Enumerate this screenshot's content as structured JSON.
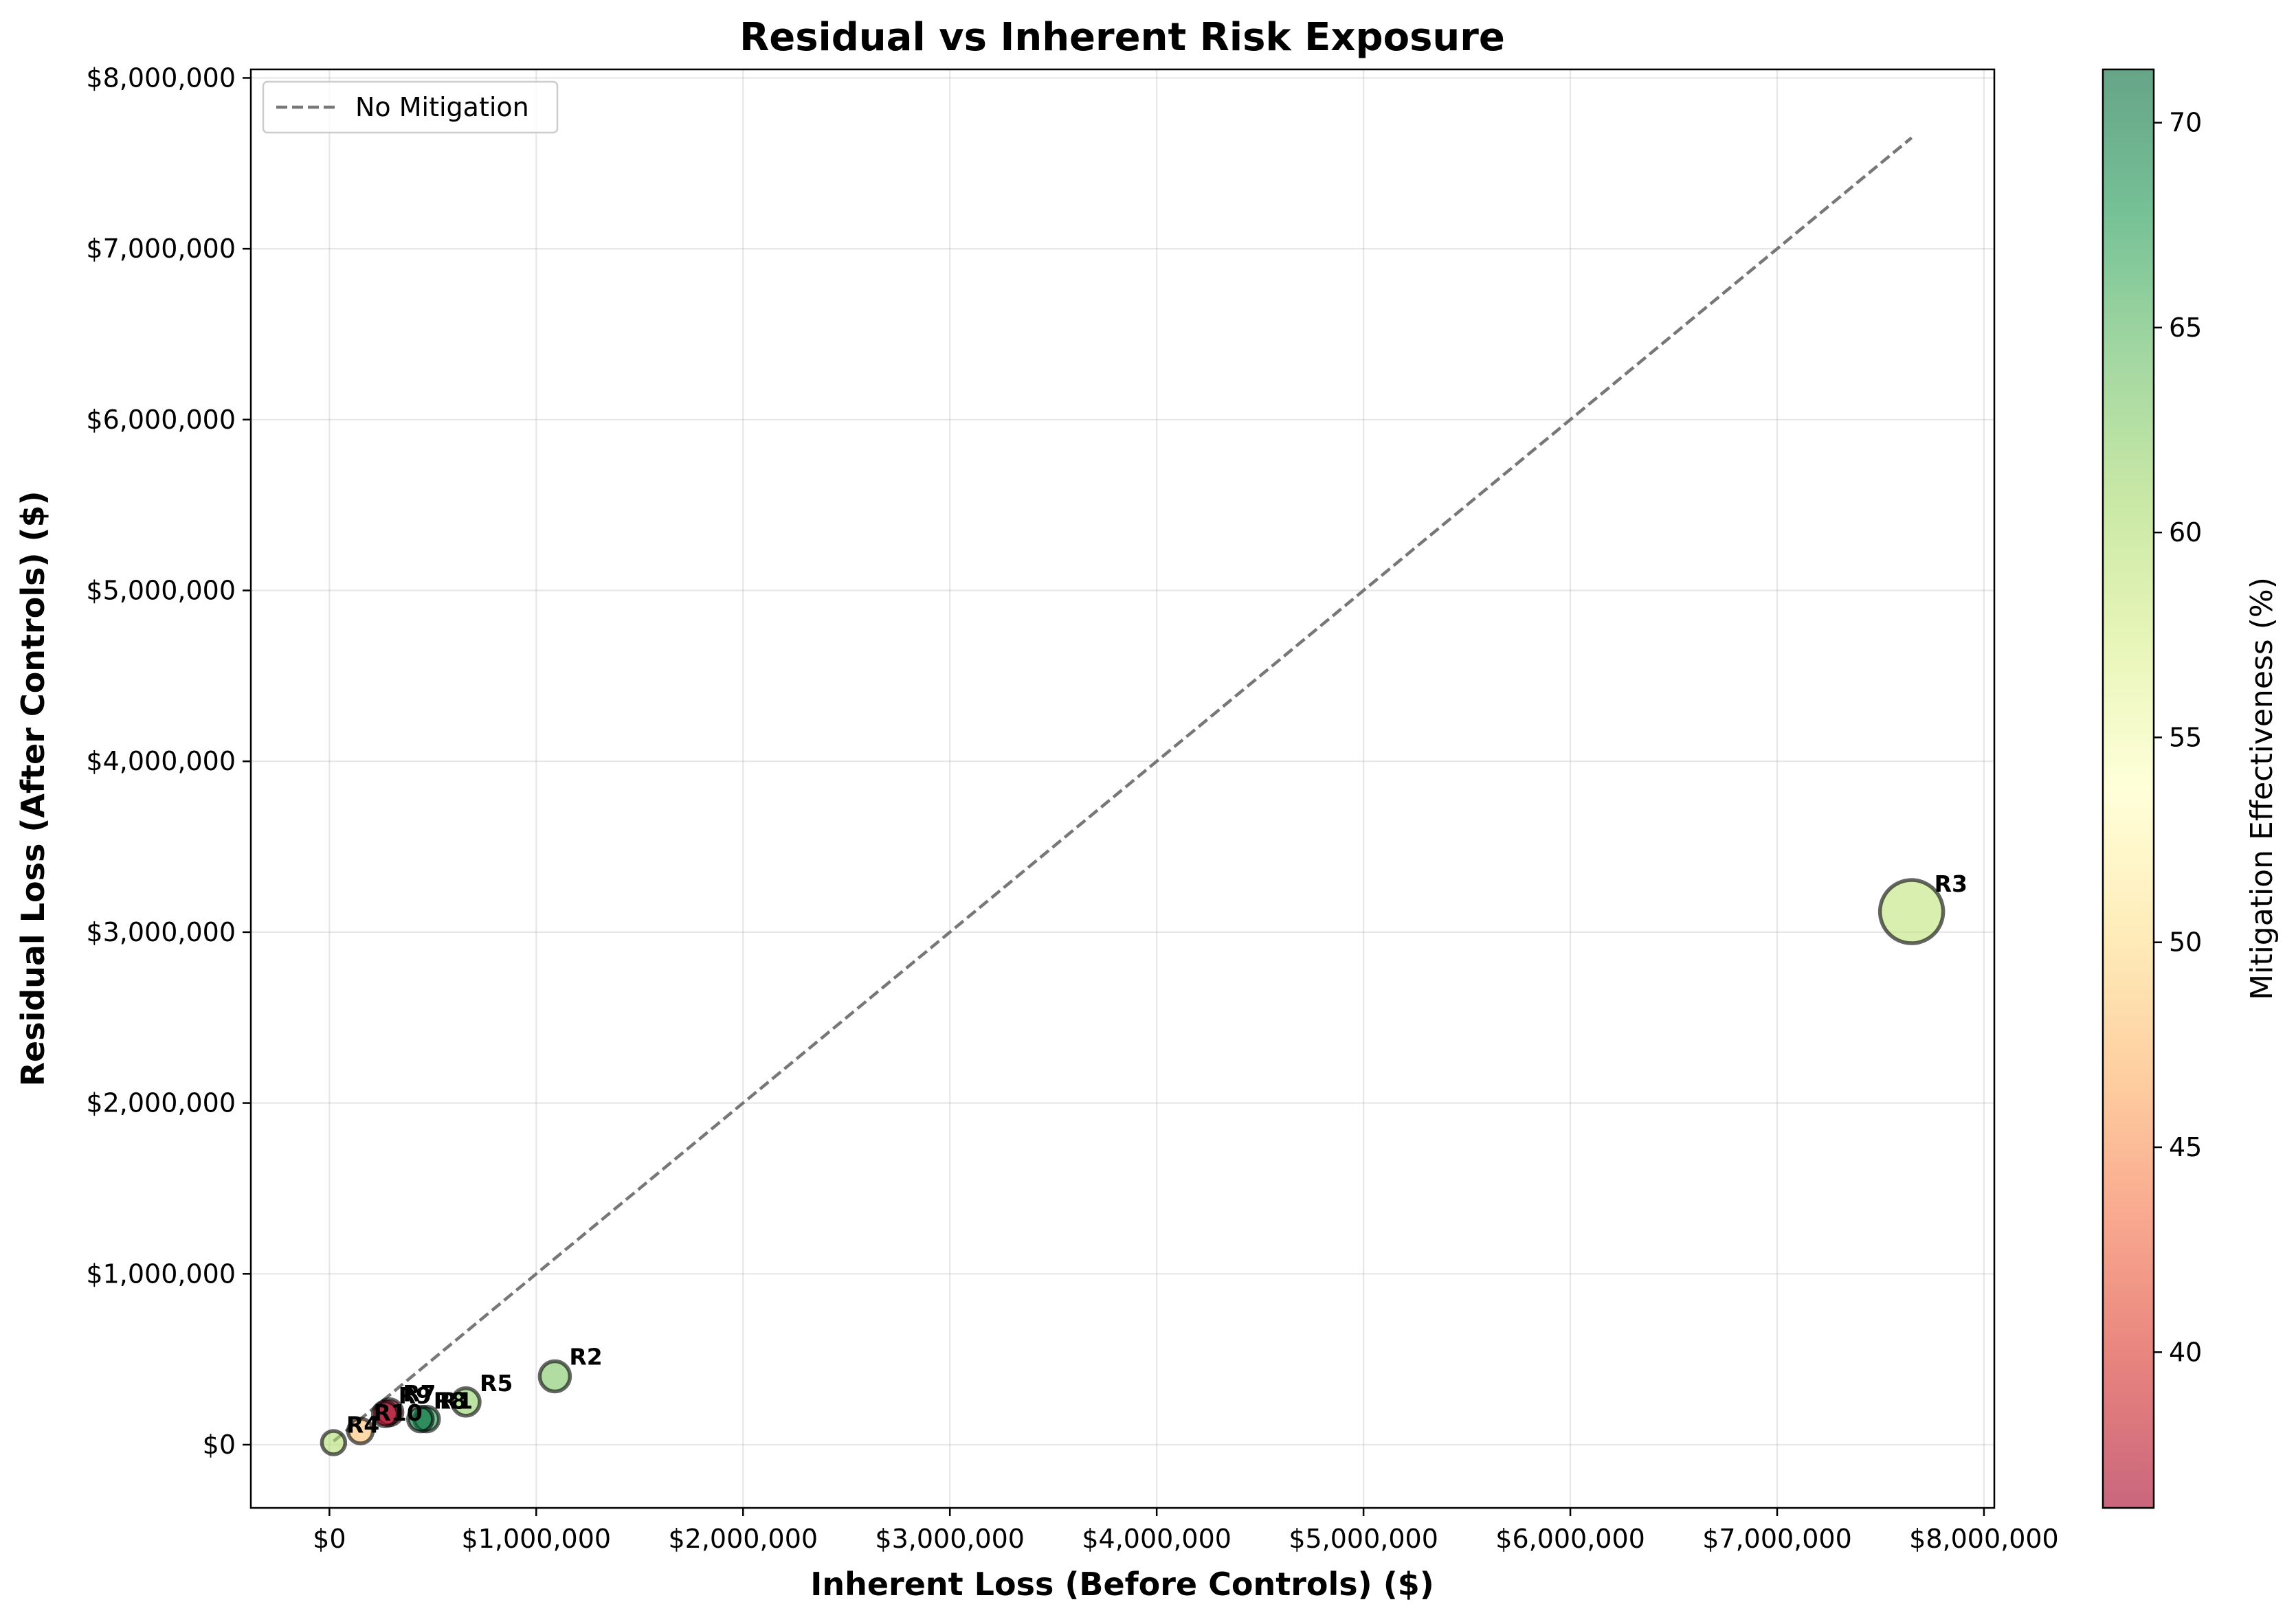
{
  "chart_data": {
    "type": "scatter",
    "title": "Residual vs Inherent Risk Exposure",
    "xlabel": "Inherent Loss (Before Controls) ($)",
    "ylabel": "Residual Loss (After Controls) ($)",
    "xlim": [
      -380000,
      8050000
    ],
    "ylim": [
      -370000,
      8050000
    ],
    "x_ticks": [
      0,
      1000000,
      2000000,
      3000000,
      4000000,
      5000000,
      6000000,
      7000000,
      8000000
    ],
    "x_tick_labels": [
      "$0",
      "$1,000,000",
      "$2,000,000",
      "$3,000,000",
      "$4,000,000",
      "$5,000,000",
      "$6,000,000",
      "$7,000,000",
      "$8,000,000"
    ],
    "y_ticks": [
      0,
      1000000,
      2000000,
      3000000,
      4000000,
      5000000,
      6000000,
      7000000,
      8000000
    ],
    "y_tick_labels": [
      "$0",
      "$1,000,000",
      "$2,000,000",
      "$3,000,000",
      "$4,000,000",
      "$5,000,000",
      "$6,000,000",
      "$7,000,000",
      "$8,000,000"
    ],
    "grid": true,
    "legend": {
      "position": "top-left",
      "entries": [
        "No Mitigation"
      ]
    },
    "reference_line": {
      "name": "No Mitigation",
      "x": [
        20000,
        7650000
      ],
      "y": [
        20000,
        7650000
      ],
      "style": "dashed",
      "color": "#777777"
    },
    "colorbar": {
      "label": "Mitigation Effectiveness (%)",
      "range": [
        36.2,
        71.3
      ],
      "ticks": [
        40,
        45,
        50,
        55,
        60,
        65,
        70
      ],
      "colormap": "RdYlGn",
      "alpha": 0.6
    },
    "points": [
      {
        "label": "R3",
        "x": 7650000,
        "y": 3120000,
        "effectiveness": 59,
        "size": 92
      },
      {
        "label": "R2",
        "x": 1090000,
        "y": 400000,
        "effectiveness": 63,
        "size": 44
      },
      {
        "label": "R5",
        "x": 660000,
        "y": 250000,
        "effectiveness": 62,
        "size": 40
      },
      {
        "label": "R1",
        "x": 470000,
        "y": 150000,
        "effectiveness": 68,
        "size": 36
      },
      {
        "label": "R8",
        "x": 440000,
        "y": 150000,
        "effectiveness": 71,
        "size": 36
      },
      {
        "label": "R7",
        "x": 290000,
        "y": 190000,
        "effectiveness": 36.5,
        "size": 38
      },
      {
        "label": "R9",
        "x": 270000,
        "y": 180000,
        "effectiveness": 37,
        "size": 36
      },
      {
        "label": "R10",
        "x": 150000,
        "y": 80000,
        "effectiveness": 48,
        "size": 36
      },
      {
        "label": "R4",
        "x": 20000,
        "y": 12000,
        "effectiveness": 60,
        "size": 34
      }
    ]
  }
}
